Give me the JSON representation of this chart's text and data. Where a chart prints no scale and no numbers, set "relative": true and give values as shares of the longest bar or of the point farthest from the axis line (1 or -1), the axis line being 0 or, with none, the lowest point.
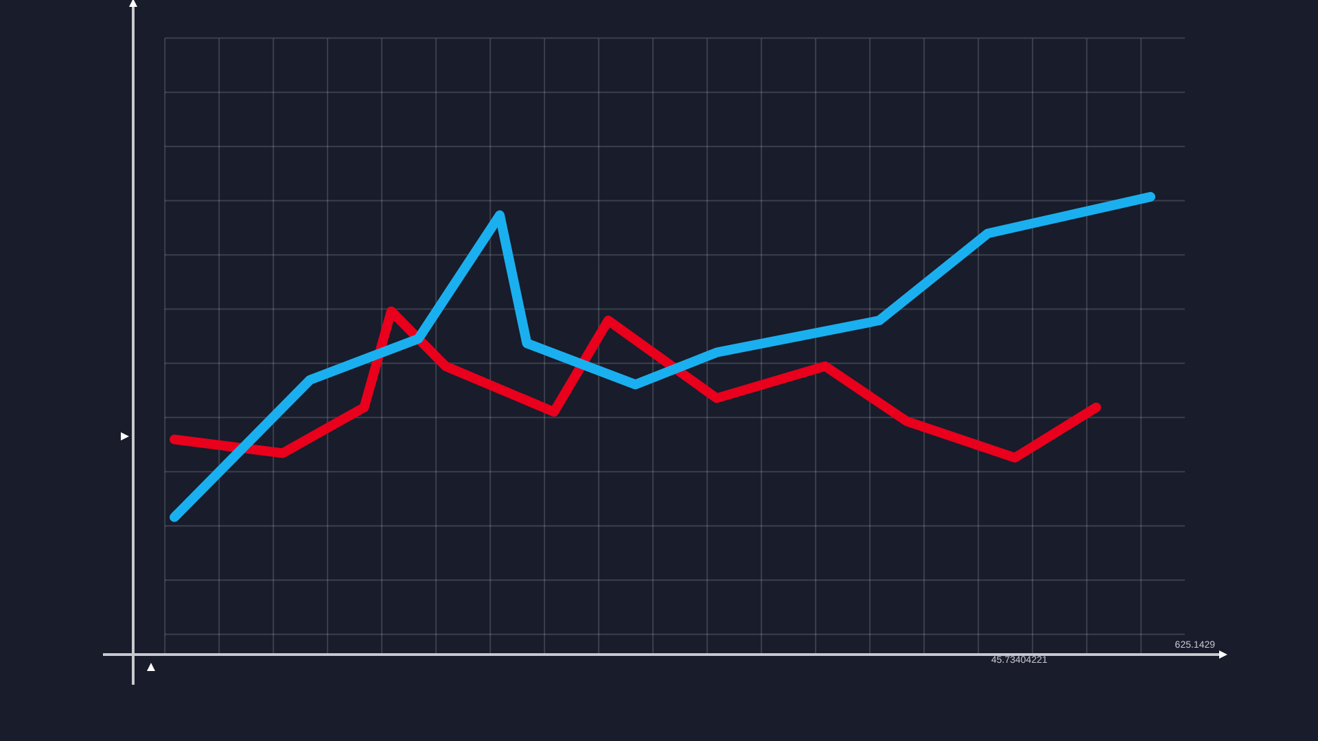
{
  "chart_data": {
    "type": "line",
    "relative": true,
    "grid": true,
    "marker": "none",
    "line_style": "solid",
    "legend": false,
    "categories": [
      null,
      null,
      null,
      null,
      null,
      null,
      null,
      null,
      null,
      null,
      null,
      null,
      null,
      null,
      null,
      null,
      null,
      null,
      null,
      null,
      null,
      null,
      null,
      null,
      null,
      null,
      null,
      null,
      null,
      null,
      null,
      null,
      null,
      null,
      null,
      null,
      null
    ],
    "series": [
      {
        "color": "#1ab0f0",
        "values": [
          0.3,
          null,
          null,
          null,
          null,
          0.6,
          null,
          null,
          null,
          0.69,
          null,
          null,
          0.96,
          0.68,
          null,
          null,
          null,
          0.59,
          null,
          null,
          0.66,
          null,
          null,
          null,
          null,
          null,
          0.73,
          null,
          null,
          null,
          0.92,
          null,
          null,
          null,
          null,
          null,
          1
        ]
      },
      {
        "color": "#e8001c",
        "values": [
          0.47,
          null,
          null,
          null,
          0.44,
          null,
          null,
          0.54,
          0.75,
          null,
          0.63,
          null,
          null,
          null,
          0.53,
          null,
          0.73,
          null,
          null,
          null,
          0.56,
          null,
          null,
          null,
          0.63,
          null,
          null,
          0.51,
          null,
          null,
          null,
          0.43,
          null,
          null,
          0.54,
          null,
          null
        ]
      }
    ],
    "annotations": [
      "45.73404221",
      "625.1429"
    ]
  }
}
